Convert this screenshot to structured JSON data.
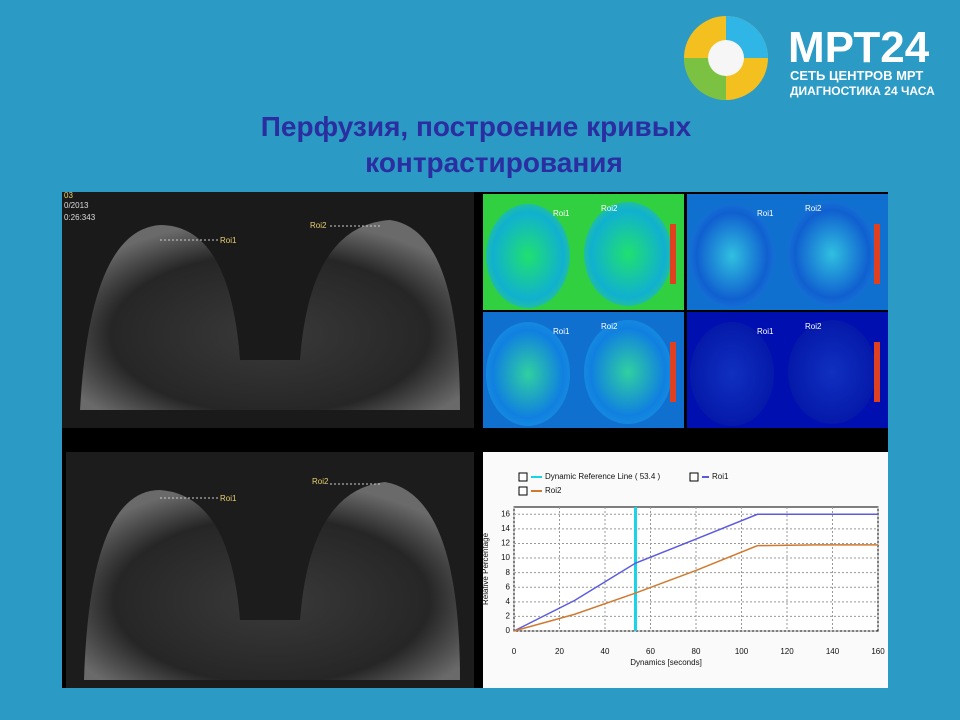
{
  "logo": {
    "brand": "МРТ24",
    "line1": "СЕТЬ ЦЕНТРОВ МРТ",
    "line2": "ДИАГНОСТИКА 24 ЧАСА"
  },
  "title": [
    "Перфузия, построение кривых",
    "контрастирования"
  ],
  "scan_top": {
    "series": "03",
    "date": "0/2013",
    "time": "0:26:343",
    "roi1": "Roi1",
    "roi2": "Roi2"
  },
  "scan_bottom": {
    "roi1": "Roi1",
    "roi2": "Roi2"
  },
  "maps": [
    {
      "roi1": "Roi1",
      "roi2": "Roi2"
    },
    {
      "roi1": "Roi1",
      "roi2": "Roi2"
    },
    {
      "roi1": "Roi1",
      "roi2": "Roi2"
    },
    {
      "roi1": "Roi1",
      "roi2": "Roi2"
    }
  ],
  "chart_data": {
    "type": "line",
    "x": [
      0,
      26.7,
      53.4,
      80,
      107,
      133,
      160
    ],
    "series": [
      {
        "name": "Roi1",
        "color": "#5b5be0",
        "values": [
          0,
          4.2,
          9.3,
          12.6,
          16,
          16,
          16
        ]
      },
      {
        "name": "Roi2",
        "color": "#d07a30",
        "values": [
          0,
          2.3,
          5.2,
          8.3,
          11.7,
          11.8,
          11.8
        ]
      }
    ],
    "reference_line": {
      "name": "Dynamic Reference Line ( 53.4 )",
      "x": 53.4,
      "color": "#19d4e6"
    },
    "x_label": "Dynamics [seconds]",
    "y_label": "Relative Percentage",
    "xlim": [
      0,
      160
    ],
    "xticks": [
      0,
      20,
      40,
      60,
      80,
      100,
      120,
      140,
      160
    ],
    "ylim": [
      0,
      17
    ],
    "yticks": [
      0,
      2,
      4,
      6,
      8,
      10,
      12,
      14,
      16
    ],
    "grid": true
  }
}
